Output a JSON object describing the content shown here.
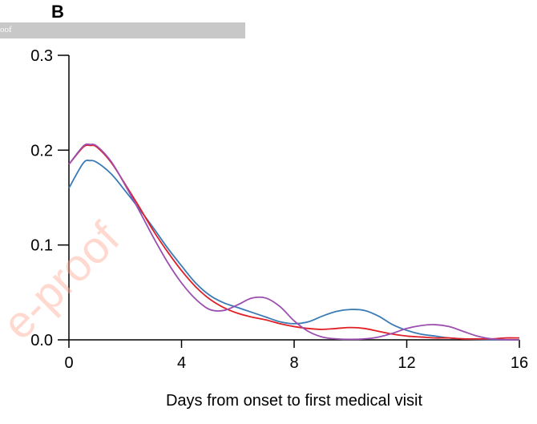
{
  "panel": {
    "label": "B",
    "banner_text": "oof",
    "watermark_text": "e-proof"
  },
  "colors": {
    "series_blue": "#3a7bb5",
    "series_red": "#e01f27",
    "series_purple": "#9b4fb0"
  },
  "chart_data": {
    "type": "line",
    "title": "",
    "xlabel": "Days from onset to first medical visit",
    "ylabel": "",
    "xlim": [
      0,
      16
    ],
    "ylim": [
      0,
      0.3
    ],
    "x_ticks": [
      "0",
      "4",
      "8",
      "12",
      "16"
    ],
    "y_ticks": [
      "0.0",
      "0.1",
      "0.2",
      "0.3"
    ],
    "grid": false,
    "legend": "none",
    "series": [
      {
        "color": "#3a7bb5",
        "x": [
          0,
          0.5,
          0.75,
          1,
          1.5,
          2,
          2.5,
          3,
          3.5,
          4,
          4.5,
          5,
          5.5,
          6,
          6.5,
          7,
          7.5,
          8,
          8.5,
          9,
          9.5,
          10,
          10.5,
          11,
          11.5,
          12,
          12.5,
          13,
          13.5,
          14,
          14.5,
          15,
          15.5,
          16
        ],
        "y": [
          0.16,
          0.186,
          0.189,
          0.187,
          0.175,
          0.157,
          0.138,
          0.118,
          0.097,
          0.078,
          0.06,
          0.047,
          0.039,
          0.034,
          0.029,
          0.024,
          0.019,
          0.017,
          0.019,
          0.025,
          0.03,
          0.032,
          0.031,
          0.025,
          0.016,
          0.01,
          0.006,
          0.004,
          0.002,
          0.001,
          0.0005,
          0.0002,
          0.0001,
          0
        ]
      },
      {
        "color": "#e01f27",
        "x": [
          0,
          0.5,
          0.75,
          1,
          1.5,
          2,
          2.5,
          3,
          3.5,
          4,
          4.5,
          5,
          5.5,
          6,
          6.5,
          7,
          7.5,
          8,
          8.5,
          9,
          9.5,
          10,
          10.5,
          11,
          11.5,
          12,
          12.5,
          13,
          13.5,
          14,
          14.5,
          15,
          15.5,
          16
        ],
        "y": [
          0.185,
          0.203,
          0.205,
          0.203,
          0.187,
          0.164,
          0.14,
          0.115,
          0.093,
          0.073,
          0.056,
          0.043,
          0.034,
          0.028,
          0.024,
          0.021,
          0.017,
          0.014,
          0.012,
          0.011,
          0.012,
          0.013,
          0.012,
          0.009,
          0.006,
          0.004,
          0.003,
          0.002,
          0.002,
          0.001,
          0.001,
          0.001,
          0.002,
          0.002
        ]
      },
      {
        "color": "#9b4fb0",
        "x": [
          0,
          0.5,
          0.75,
          1,
          1.5,
          2,
          2.5,
          3,
          3.5,
          4,
          4.5,
          5,
          5.5,
          6,
          6.5,
          7,
          7.5,
          8,
          8.5,
          9,
          9.5,
          10,
          10.5,
          11,
          11.5,
          12,
          12.5,
          13,
          13.5,
          14,
          14.5,
          15,
          15.5,
          16
        ],
        "y": [
          0.185,
          0.204,
          0.206,
          0.204,
          0.188,
          0.163,
          0.136,
          0.108,
          0.082,
          0.06,
          0.043,
          0.032,
          0.031,
          0.037,
          0.044,
          0.044,
          0.035,
          0.02,
          0.009,
          0.003,
          0.001,
          0.0005,
          0.001,
          0.003,
          0.007,
          0.012,
          0.015,
          0.016,
          0.014,
          0.009,
          0.004,
          0.001,
          0.0002,
          0
        ]
      }
    ]
  }
}
